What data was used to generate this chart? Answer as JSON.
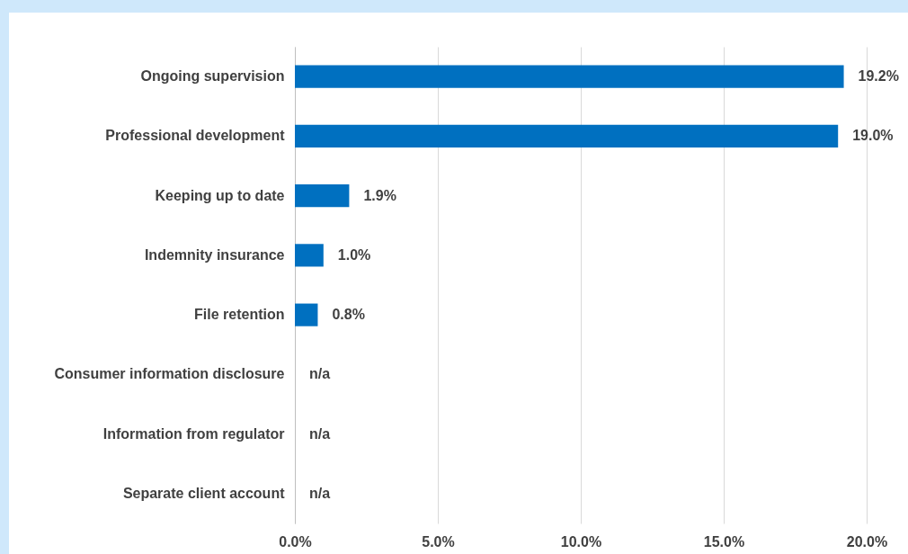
{
  "chart_data": {
    "type": "bar",
    "orientation": "horizontal",
    "categories": [
      "Ongoing supervision",
      "Professional development",
      "Keeping up to date",
      "Indemnity insurance",
      "File retention",
      "Consumer information disclosure",
      "Information from regulator",
      "Separate client account"
    ],
    "values": [
      19.2,
      19.0,
      1.9,
      1.0,
      0.8,
      null,
      null,
      null
    ],
    "value_labels": [
      "19.2%",
      "19.0%",
      "1.9%",
      "1.0%",
      "0.8%",
      "n/a",
      "n/a",
      "n/a"
    ],
    "color": "#0070c0",
    "xlim": [
      0,
      20
    ],
    "xticks": [
      {
        "value": 0,
        "label": "0.0%"
      },
      {
        "value": 5,
        "label": "5.0%"
      },
      {
        "value": 10,
        "label": "10.0%"
      },
      {
        "value": 15,
        "label": "15.0%"
      },
      {
        "value": 20,
        "label": "20.0%"
      }
    ],
    "grid": "x"
  }
}
